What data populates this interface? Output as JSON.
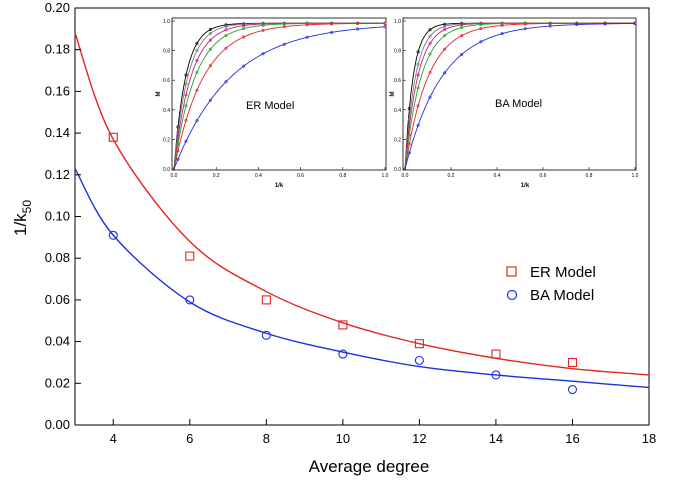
{
  "chart_data": {
    "type": "scatter",
    "xlabel": "Average degree",
    "ylabel": "1/k",
    "ylabel_sub": "50",
    "xlim": [
      3,
      18
    ],
    "ylim": [
      0,
      0.2
    ],
    "x_ticks": [
      "4",
      "6",
      "8",
      "10",
      "12",
      "14",
      "16",
      "18"
    ],
    "y_ticks": [
      "0.00",
      "0.02",
      "0.04",
      "0.06",
      "0.08",
      "0.10",
      "0.12",
      "0.14",
      "0.16",
      "0.18",
      "0.20"
    ],
    "grid": false,
    "legend_position": "right",
    "series": [
      {
        "name": "ER Model",
        "color": "#e3261f",
        "marker": "square",
        "x": [
          4,
          6,
          8,
          10,
          12,
          14,
          16
        ],
        "y": [
          0.138,
          0.081,
          0.06,
          0.048,
          0.039,
          0.034,
          0.03
        ],
        "fit_x": [
          3,
          4,
          6,
          8,
          10,
          12,
          14,
          16,
          18
        ],
        "fit_y": [
          0.188,
          0.137,
          0.088,
          0.064,
          0.049,
          0.039,
          0.032,
          0.027,
          0.024
        ]
      },
      {
        "name": "BA Model",
        "color": "#1f2fe0",
        "marker": "circle",
        "x": [
          4,
          6,
          8,
          10,
          12,
          14,
          16
        ],
        "y": [
          0.091,
          0.06,
          0.043,
          0.034,
          0.031,
          0.024,
          0.017
        ],
        "fit_x": [
          3,
          4,
          6,
          8,
          10,
          12,
          14,
          16,
          18
        ],
        "fit_y": [
          0.123,
          0.091,
          0.059,
          0.044,
          0.035,
          0.028,
          0.024,
          0.021,
          0.018
        ]
      }
    ],
    "insets": [
      {
        "title": "ER Model",
        "xlabel": "1/k",
        "ylabel": "M",
        "xlim": [
          0,
          1
        ],
        "ylim": [
          0,
          1
        ],
        "x_ticks": [
          "0.0",
          "0.2",
          "0.4",
          "0.6",
          "0.8",
          "1.0"
        ],
        "y_ticks": [
          "0.0",
          "0.2",
          "0.4",
          "0.6",
          "0.8",
          "1.0"
        ],
        "curves": [
          {
            "color": "#000000",
            "rate": 0.055
          },
          {
            "color": "#7a7a7a",
            "rate": 0.065
          },
          {
            "color": "#c21b8a",
            "rate": 0.08
          },
          {
            "color": "#22a722",
            "rate": 0.1
          },
          {
            "color": "#e3261f",
            "rate": 0.14
          },
          {
            "color": "#1f2fe0",
            "rate": 0.27
          }
        ]
      },
      {
        "title": "BA Model",
        "xlabel": "1/k",
        "ylabel": "M",
        "xlim": [
          0,
          1
        ],
        "ylim": [
          0,
          1
        ],
        "x_ticks": [
          "0.0",
          "0.2",
          "0.4",
          "0.6",
          "0.8",
          "1.0"
        ],
        "y_ticks": [
          "0.0",
          "0.2",
          "0.4",
          "0.6",
          "0.8",
          "1.0"
        ],
        "curves": [
          {
            "color": "#000000",
            "rate": 0.035
          },
          {
            "color": "#7a7a7a",
            "rate": 0.045
          },
          {
            "color": "#c21b8a",
            "rate": 0.055
          },
          {
            "color": "#22a722",
            "rate": 0.07
          },
          {
            "color": "#e3261f",
            "rate": 0.1
          },
          {
            "color": "#1f2fe0",
            "rate": 0.16
          }
        ]
      }
    ]
  }
}
